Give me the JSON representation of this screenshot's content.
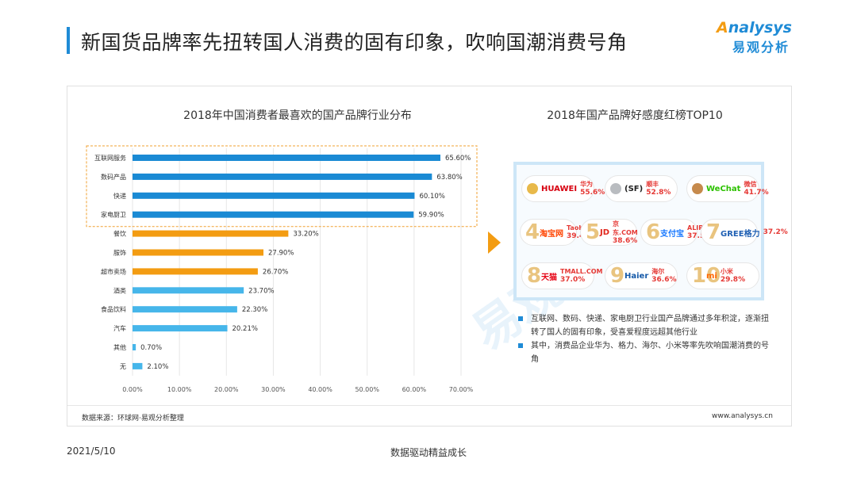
{
  "page": {
    "title": "新国货品牌率先扭转国人消费的固有印象，吹响国潮消费号角",
    "logo_en": "nalysys",
    "logo_en_first": "A",
    "logo_cn": "易观分析",
    "watermark": "易观分",
    "source": "数据来源：环球网·易观分析整理",
    "website": "www.analysys.cn",
    "footer_date": "2021/5/10",
    "footer_slogan": "数据驱动精益成长",
    "footer_page": "\"\\\"\""
  },
  "colors": {
    "accent_blue": "#1f8bd6",
    "bar_dark_blue": "#1a8ad4",
    "bar_orange": "#f39c12",
    "bar_light_blue": "#46b6ea",
    "highlight_border": "#f0a030"
  },
  "chart_data": {
    "type": "bar",
    "orientation": "horizontal",
    "title": "2018年中国消费者最喜欢的国产品牌行业分布",
    "categories": [
      "互联网服务",
      "数码产品",
      "快递",
      "家电厨卫",
      "餐饮",
      "服饰",
      "超市卖场",
      "酒类",
      "食品饮料",
      "汽车",
      "其他",
      "无"
    ],
    "values": [
      65.6,
      63.8,
      60.1,
      59.9,
      33.2,
      27.9,
      26.7,
      23.7,
      22.3,
      20.21,
      0.7,
      2.1
    ],
    "value_labels": [
      "65.60%",
      "63.80%",
      "60.10%",
      "59.90%",
      "33.20%",
      "27.90%",
      "26.70%",
      "23.70%",
      "22.30%",
      "20.21%",
      "0.70%",
      "2.10%"
    ],
    "color_groups": [
      "dark",
      "dark",
      "dark",
      "dark",
      "orange",
      "orange",
      "orange",
      "light",
      "light",
      "light",
      "light",
      "light"
    ],
    "xlim": [
      0,
      70
    ],
    "xticks": [
      "0.00%",
      "10.00%",
      "20.00%",
      "30.00%",
      "40.00%",
      "50.00%",
      "60.00%",
      "70.00%"
    ],
    "highlighted_top": 4,
    "grid": true
  },
  "brands": {
    "title": "2018年国产品牌好感度红榜TOP10",
    "items": [
      {
        "rank": "1",
        "logo": "HUAWEI",
        "name": "华为",
        "pct": "55.6%",
        "logo_color": "#d7000f",
        "medal": "#e8b94a"
      },
      {
        "rank": "2",
        "logo": "(SF)",
        "name": "顺丰",
        "pct": "52.8%",
        "logo_color": "#222222",
        "medal": "#b9bcc0"
      },
      {
        "rank": "3",
        "logo": "WeChat",
        "name": "微信",
        "pct": "41.7%",
        "logo_color": "#2dc100",
        "medal": "#c68a4c"
      },
      {
        "rank": "4",
        "logo": "淘宝网",
        "name": "Taobao.com",
        "pct": "39.4%",
        "logo_color": "#ff4400",
        "medal": ""
      },
      {
        "rank": "5",
        "logo": "JD",
        "name": "京东.COM",
        "pct": "38.6%",
        "logo_color": "#e1251b",
        "medal": ""
      },
      {
        "rank": "6",
        "logo": "支付宝",
        "name": "ALIPAY",
        "pct": "37.5%",
        "logo_color": "#1677ff",
        "medal": ""
      },
      {
        "rank": "7",
        "logo": "GREE格力",
        "name": "",
        "pct": "37.2%",
        "logo_color": "#1e5fb3",
        "medal": ""
      },
      {
        "rank": "8",
        "logo": "天猫",
        "name": "TMALL.COM",
        "pct": "37.0%",
        "logo_color": "#e60012",
        "medal": ""
      },
      {
        "rank": "9",
        "logo": "Haier",
        "name": "海尔",
        "pct": "36.6%",
        "logo_color": "#1559a8",
        "medal": ""
      },
      {
        "rank": "10",
        "logo": "mi",
        "name": "小米",
        "pct": "29.8%",
        "logo_color": "#ff6700",
        "medal": ""
      }
    ]
  },
  "notes": [
    "互联网、数码、快递、家电厨卫行业国产品牌通过多年积淀，逐渐扭转了国人的固有印象，受喜爱程度远超其他行业",
    "其中，消费品企业华为、格力、海尔、小米等率先吹响国潮消费的号角"
  ]
}
